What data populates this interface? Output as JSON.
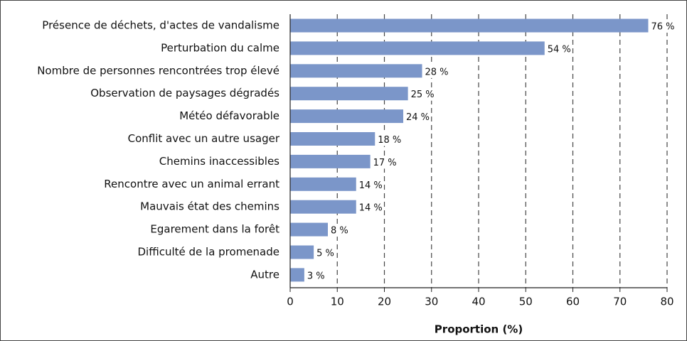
{
  "chart_data": {
    "type": "bar",
    "orientation": "horizontal",
    "categories": [
      "Présence de déchets, d'actes de vandalisme",
      "Perturbation du calme",
      "Nombre de personnes rencontrées trop élevé",
      "Observation de paysages dégradés",
      "Météo défavorable",
      "Conflit avec un autre usager",
      "Chemins inaccessibles",
      "Rencontre avec un animal errant",
      "Mauvais état des chemins",
      "Egarement dans la forêt",
      "Difficulté de la promenade",
      "Autre"
    ],
    "values": [
      76,
      54,
      28,
      25,
      24,
      18,
      17,
      14,
      14,
      8,
      5,
      3
    ],
    "value_labels": [
      "76 %",
      "54 %",
      "28 %",
      "25 %",
      "24 %",
      "18 %",
      "17 %",
      "14 %",
      "14 %",
      "8 %",
      "5 %",
      "3 %"
    ],
    "color": "#7b96c9",
    "xlabel": "Proportion (%)",
    "xlim": [
      0,
      80
    ],
    "xticks": [
      0,
      10,
      20,
      30,
      40,
      50,
      60,
      70,
      80
    ],
    "grid": true
  }
}
